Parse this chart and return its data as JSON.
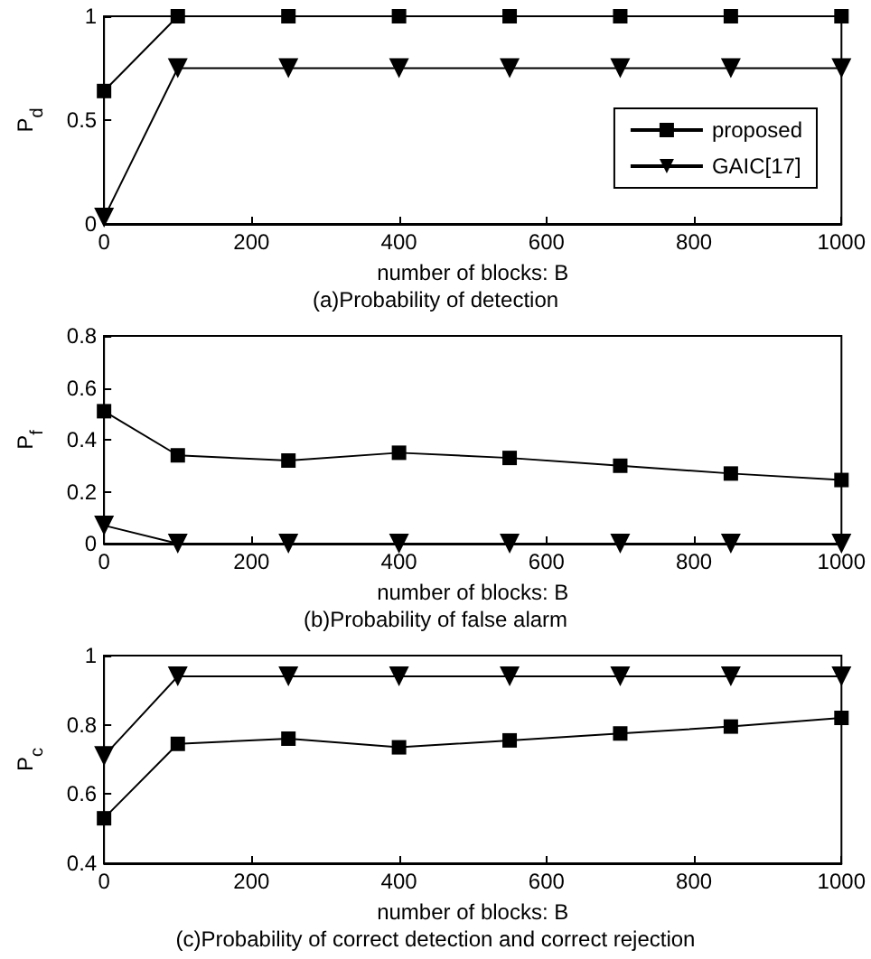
{
  "chart_data": [
    {
      "type": "line",
      "title": "(a)Probability of detection",
      "xlabel": "number of blocks: B",
      "ylabel": "P$_{d}$",
      "x": [
        0,
        100,
        250,
        400,
        550,
        700,
        850,
        1000
      ],
      "xlim": [
        0,
        1000
      ],
      "xticks": [
        0,
        200,
        400,
        600,
        800,
        1000
      ],
      "ylim": [
        0,
        1
      ],
      "yticks": [
        0,
        0.5,
        1
      ],
      "legend": "right",
      "line_style": "solid",
      "series": [
        {
          "name": "proposed",
          "color": "#000000",
          "marker": "square",
          "values": [
            0.64,
            1,
            1,
            1,
            1,
            1,
            1,
            1
          ]
        },
        {
          "name": "GAIC[17]",
          "color": "#000000",
          "marker": "triangle",
          "values": [
            0.03,
            0.75,
            0.75,
            0.75,
            0.75,
            0.75,
            0.75,
            0.75
          ]
        }
      ]
    },
    {
      "type": "line",
      "title": "(b)Probability of false alarm",
      "xlabel": "number of blocks: B",
      "ylabel": "P$_{f}$",
      "x": [
        0,
        100,
        250,
        400,
        550,
        700,
        850,
        1000
      ],
      "xlim": [
        0,
        1000
      ],
      "xticks": [
        0,
        200,
        400,
        600,
        800,
        1000
      ],
      "ylim": [
        0,
        0.8
      ],
      "yticks": [
        0,
        0.2,
        0.4,
        0.6,
        0.8
      ],
      "line_style": "solid",
      "series": [
        {
          "color": "#000000",
          "marker": "square",
          "values": [
            0.51,
            0.34,
            0.32,
            0.35,
            0.33,
            0.3,
            0.27,
            0.245
          ]
        },
        {
          "color": "#000000",
          "marker": "triangle",
          "values": [
            0.07,
            0,
            0,
            0,
            0,
            0,
            0,
            0
          ]
        }
      ]
    },
    {
      "type": "line",
      "title": "(c)Probability of correct detection and correct rejection",
      "xlabel": "number of blocks: B",
      "ylabel": "P$_{c}$",
      "x": [
        0,
        100,
        250,
        400,
        550,
        700,
        850,
        1000
      ],
      "xlim": [
        0,
        1000
      ],
      "xticks": [
        0,
        200,
        400,
        600,
        800,
        1000
      ],
      "ylim": [
        0.4,
        1
      ],
      "yticks": [
        0.4,
        0.6,
        0.8,
        1
      ],
      "line_style": "solid",
      "series": [
        {
          "color": "#000000",
          "marker": "square",
          "values": [
            0.53,
            0.745,
            0.76,
            0.735,
            0.755,
            0.775,
            0.795,
            0.82
          ]
        },
        {
          "color": "#000000",
          "marker": "triangle",
          "values": [
            0.71,
            0.94,
            0.94,
            0.94,
            0.94,
            0.94,
            0.94,
            0.94
          ]
        }
      ]
    }
  ]
}
